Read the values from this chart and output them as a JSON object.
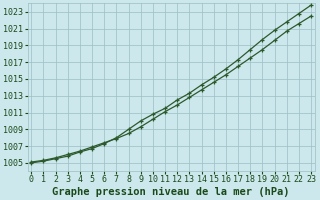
{
  "title": "Graphe pression niveau de la mer (hPa)",
  "xlabel_hours": [
    0,
    1,
    2,
    3,
    4,
    5,
    6,
    7,
    8,
    9,
    10,
    11,
    12,
    13,
    14,
    15,
    16,
    17,
    18,
    19,
    20,
    21,
    22,
    23
  ],
  "line1_values": [
    1005.1,
    1005.3,
    1005.6,
    1006.0,
    1006.4,
    1006.9,
    1007.4,
    1007.9,
    1008.5,
    1009.3,
    1010.2,
    1011.1,
    1011.9,
    1012.8,
    1013.7,
    1014.6,
    1015.5,
    1016.5,
    1017.5,
    1018.5,
    1019.6,
    1020.7,
    1021.6,
    1022.5
  ],
  "line2_values": [
    1005.0,
    1005.2,
    1005.5,
    1005.8,
    1006.3,
    1006.7,
    1007.3,
    1008.0,
    1009.0,
    1010.0,
    1010.8,
    1011.5,
    1012.5,
    1013.3,
    1014.3,
    1015.2,
    1016.2,
    1017.3,
    1018.5,
    1019.7,
    1020.8,
    1021.8,
    1022.8,
    1023.8
  ],
  "ylim": [
    1004.0,
    1024.0
  ],
  "yticks": [
    1005,
    1007,
    1009,
    1011,
    1013,
    1015,
    1017,
    1019,
    1021,
    1023
  ],
  "xlim": [
    -0.3,
    23.3
  ],
  "line_color": "#2d5a2d",
  "marker": "+",
  "markersize": 3.5,
  "linewidth": 0.9,
  "bg_color": "#cce8ec",
  "grid_color": "#9bbfc4",
  "label_color": "#1a4a1a",
  "title_color": "#1a4a1a",
  "title_fontsize": 7.5,
  "tick_fontsize": 6.0
}
